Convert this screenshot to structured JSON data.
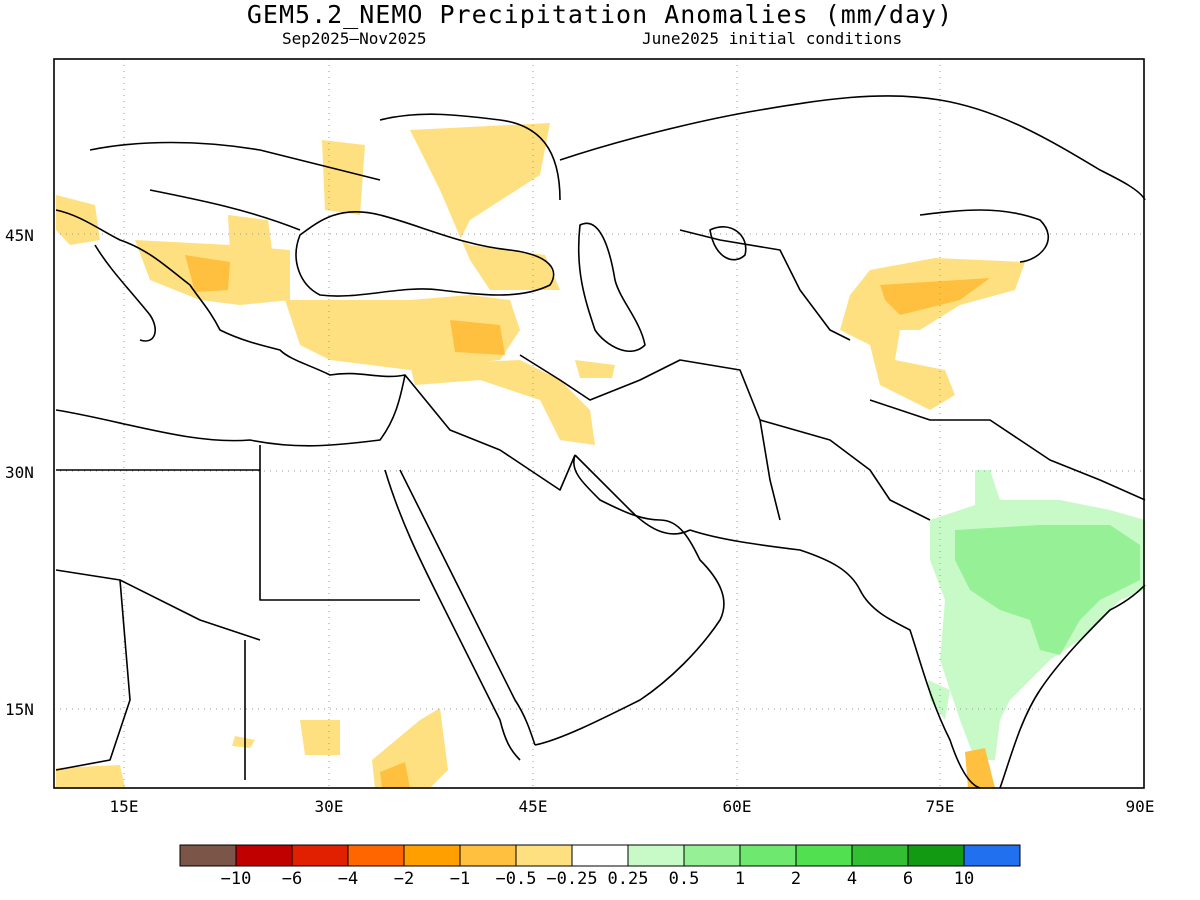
{
  "title": "GEM5.2_NEMO Precipitation Anomalies (mm/day)",
  "subtitle_left": "Sep2025–Nov2025",
  "subtitle_right": "June2025 initial conditions",
  "map": {
    "lon_range": [
      10,
      90
    ],
    "lat_range": [
      10,
      55
    ],
    "lat_labels": [
      "45N",
      "30N",
      "15N"
    ],
    "lon_labels": [
      "15E",
      "30E",
      "45E",
      "60E",
      "75E",
      "90E"
    ],
    "grid": "dotted"
  },
  "colorbar": {
    "colors": [
      "#7a5548",
      "#c00000",
      "#e02000",
      "#ff6600",
      "#ffa000",
      "#ffc040",
      "#ffe080",
      "#ffffff",
      "#c8fac8",
      "#96f096",
      "#6ee86e",
      "#50e050",
      "#32c032",
      "#129a12",
      "#2070f0"
    ],
    "labels": [
      "−10",
      "−6",
      "−4",
      "−2",
      "−1",
      "−0.5",
      "−0.25",
      "0.25",
      "0.5",
      "1",
      "2",
      "4",
      "6",
      "10"
    ]
  },
  "anomaly_colors": {
    "dry_light": "#ffe080",
    "dry_medium": "#ffc040",
    "wet_light": "#c8fac8",
    "wet_medium": "#96f096"
  }
}
